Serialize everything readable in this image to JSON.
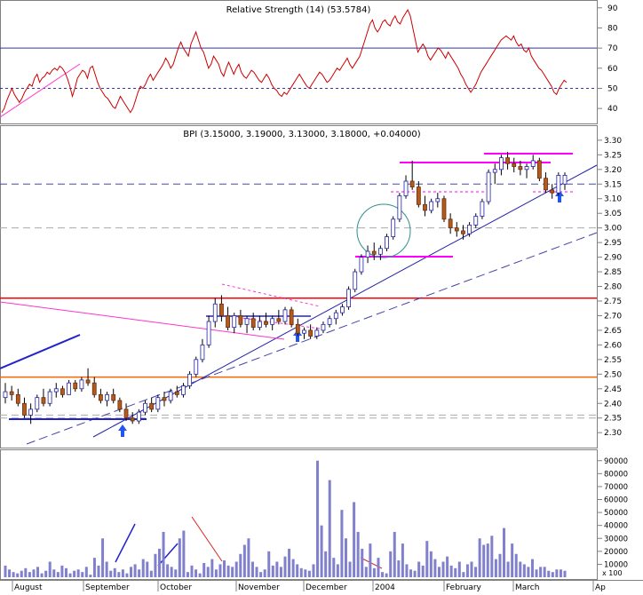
{
  "chart_data": {
    "type": "candlestick",
    "x_labels": [
      "August",
      "September",
      "October",
      "November",
      "December",
      "2004",
      "February",
      "March",
      "Ap"
    ],
    "rsi": {
      "title": "Relative Strength (14) (53.5784)",
      "y_ticks": [
        40,
        50,
        60,
        70,
        80,
        90
      ],
      "ylim": [
        33,
        93
      ],
      "reference_levels": [
        70,
        50
      ],
      "values": [
        38,
        40,
        44,
        47,
        50,
        47,
        45,
        43,
        45,
        48,
        50,
        52,
        51,
        55,
        57,
        53,
        55,
        56,
        58,
        57,
        59,
        60,
        59,
        61,
        60,
        58,
        55,
        51,
        46,
        50,
        55,
        57,
        59,
        58,
        55,
        60,
        61,
        57,
        53,
        50,
        48,
        46,
        45,
        43,
        41,
        40,
        43,
        46,
        44,
        42,
        40,
        38,
        40,
        44,
        48,
        51,
        50,
        52,
        55,
        57,
        54,
        56,
        58,
        60,
        62,
        65,
        63,
        60,
        62,
        66,
        70,
        73,
        70,
        68,
        66,
        72,
        75,
        78,
        74,
        70,
        68,
        64,
        60,
        62,
        66,
        64,
        62,
        58,
        56,
        60,
        63,
        60,
        57,
        60,
        62,
        58,
        56,
        55,
        57,
        59,
        58,
        56,
        54,
        53,
        55,
        57,
        55,
        52,
        50,
        49,
        47,
        46,
        48,
        47,
        49,
        51,
        53,
        55,
        57,
        55,
        53,
        51,
        50,
        52,
        54,
        56,
        58,
        57,
        55,
        53,
        54,
        56,
        58,
        60,
        59,
        61,
        63,
        65,
        62,
        60,
        62,
        64,
        66,
        70,
        74,
        78,
        82,
        84,
        80,
        78,
        80,
        83,
        84,
        82,
        81,
        84,
        86,
        83,
        82,
        85,
        87,
        89,
        86,
        80,
        74,
        68,
        70,
        72,
        70,
        66,
        64,
        66,
        68,
        70,
        69,
        67,
        65,
        68,
        66,
        64,
        62,
        60,
        57,
        55,
        52,
        50,
        48,
        50,
        52,
        55,
        58,
        60,
        62,
        64,
        66,
        68,
        70,
        72,
        74,
        75,
        76,
        75,
        74,
        76,
        73,
        71,
        72,
        69,
        68,
        70,
        66,
        64,
        62,
        60,
        59,
        57,
        55,
        53,
        51,
        48,
        47,
        50,
        52,
        54,
        53
      ]
    },
    "price": {
      "title": "BPI (3.15000, 3.19000, 3.13000, 3.18000, +0.04000)",
      "y_ticks": [
        2.3,
        2.35,
        2.4,
        2.45,
        2.5,
        2.55,
        2.6,
        2.65,
        2.7,
        2.75,
        2.8,
        2.85,
        2.9,
        2.95,
        3.0,
        3.05,
        3.1,
        3.15,
        3.2,
        3.25,
        3.3
      ],
      "y_tick_labels": [
        "2.30",
        "2.35",
        "2.40",
        "2.45",
        "2.50",
        "2.55",
        "2.60",
        "2.65",
        "2.70",
        "2.75",
        "2.80",
        "2.85",
        "2.90",
        "2.95",
        "3.00",
        "3.05",
        "3.10",
        "3.15",
        "3.20",
        "3.25",
        "3.30"
      ],
      "ylim": [
        2.255,
        3.33
      ],
      "horizontal_levels": [
        {
          "value": 2.76,
          "color": "#ff0000",
          "style": "solid"
        },
        {
          "value": 2.49,
          "color": "#ff6600",
          "style": "solid"
        },
        {
          "value": 3.15,
          "color": "#4a4a9a",
          "style": "dashed"
        },
        {
          "value": 3.0,
          "color": "#aaaaaa",
          "style": "dashed"
        },
        {
          "value": 2.36,
          "color": "#aaaaaa",
          "style": "dashed"
        },
        {
          "value": 2.35,
          "color": "#aaaaaa",
          "style": "dashed"
        }
      ],
      "candles": [
        [
          2.42,
          2.47,
          2.4,
          2.44
        ],
        [
          2.44,
          2.46,
          2.41,
          2.43
        ],
        [
          2.43,
          2.45,
          2.39,
          2.4
        ],
        [
          2.4,
          2.42,
          2.35,
          2.36
        ],
        [
          2.36,
          2.4,
          2.33,
          2.38
        ],
        [
          2.38,
          2.43,
          2.37,
          2.42
        ],
        [
          2.42,
          2.45,
          2.39,
          2.4
        ],
        [
          2.4,
          2.45,
          2.39,
          2.44
        ],
        [
          2.44,
          2.47,
          2.42,
          2.45
        ],
        [
          2.45,
          2.46,
          2.42,
          2.43
        ],
        [
          2.43,
          2.48,
          2.43,
          2.47
        ],
        [
          2.47,
          2.48,
          2.44,
          2.45
        ],
        [
          2.45,
          2.49,
          2.44,
          2.48
        ],
        [
          2.48,
          2.52,
          2.46,
          2.47
        ],
        [
          2.47,
          2.49,
          2.42,
          2.43
        ],
        [
          2.43,
          2.45,
          2.4,
          2.41
        ],
        [
          2.41,
          2.44,
          2.39,
          2.43
        ],
        [
          2.43,
          2.45,
          2.4,
          2.41
        ],
        [
          2.41,
          2.42,
          2.37,
          2.38
        ],
        [
          2.38,
          2.4,
          2.34,
          2.35
        ],
        [
          2.35,
          2.37,
          2.33,
          2.34
        ],
        [
          2.34,
          2.38,
          2.33,
          2.37
        ],
        [
          2.37,
          2.41,
          2.36,
          2.4
        ],
        [
          2.4,
          2.42,
          2.37,
          2.38
        ],
        [
          2.38,
          2.43,
          2.37,
          2.42
        ],
        [
          2.42,
          2.44,
          2.39,
          2.41
        ],
        [
          2.41,
          2.45,
          2.4,
          2.44
        ],
        [
          2.44,
          2.46,
          2.42,
          2.43
        ],
        [
          2.43,
          2.47,
          2.42,
          2.46
        ],
        [
          2.46,
          2.51,
          2.45,
          2.5
        ],
        [
          2.5,
          2.56,
          2.49,
          2.55
        ],
        [
          2.55,
          2.62,
          2.54,
          2.6
        ],
        [
          2.6,
          2.7,
          2.59,
          2.68
        ],
        [
          2.68,
          2.76,
          2.66,
          2.74
        ],
        [
          2.74,
          2.77,
          2.68,
          2.7
        ],
        [
          2.7,
          2.73,
          2.65,
          2.66
        ],
        [
          2.66,
          2.71,
          2.64,
          2.7
        ],
        [
          2.7,
          2.72,
          2.66,
          2.67
        ],
        [
          2.67,
          2.7,
          2.64,
          2.69
        ],
        [
          2.69,
          2.71,
          2.65,
          2.66
        ],
        [
          2.66,
          2.7,
          2.65,
          2.68
        ],
        [
          2.68,
          2.71,
          2.66,
          2.67
        ],
        [
          2.67,
          2.7,
          2.65,
          2.69
        ],
        [
          2.69,
          2.72,
          2.67,
          2.68
        ],
        [
          2.68,
          2.73,
          2.67,
          2.72
        ],
        [
          2.72,
          2.73,
          2.66,
          2.67
        ],
        [
          2.67,
          2.69,
          2.63,
          2.64
        ],
        [
          2.64,
          2.66,
          2.62,
          2.65
        ],
        [
          2.65,
          2.67,
          2.62,
          2.63
        ],
        [
          2.63,
          2.66,
          2.62,
          2.65
        ],
        [
          2.65,
          2.68,
          2.64,
          2.67
        ],
        [
          2.67,
          2.7,
          2.66,
          2.69
        ],
        [
          2.69,
          2.72,
          2.67,
          2.71
        ],
        [
          2.71,
          2.74,
          2.7,
          2.73
        ],
        [
          2.73,
          2.8,
          2.72,
          2.79
        ],
        [
          2.79,
          2.86,
          2.78,
          2.85
        ],
        [
          2.85,
          2.91,
          2.84,
          2.9
        ],
        [
          2.9,
          2.94,
          2.88,
          2.92
        ],
        [
          2.92,
          2.95,
          2.89,
          2.91
        ],
        [
          2.91,
          2.94,
          2.89,
          2.93
        ],
        [
          2.93,
          2.98,
          2.92,
          2.97
        ],
        [
          2.97,
          3.04,
          2.96,
          3.03
        ],
        [
          3.03,
          3.12,
          3.02,
          3.11
        ],
        [
          3.11,
          3.18,
          3.1,
          3.16
        ],
        [
          3.16,
          3.23,
          3.13,
          3.14
        ],
        [
          3.14,
          3.16,
          3.07,
          3.08
        ],
        [
          3.08,
          3.11,
          3.04,
          3.06
        ],
        [
          3.06,
          3.1,
          3.05,
          3.09
        ],
        [
          3.09,
          3.12,
          3.07,
          3.1
        ],
        [
          3.1,
          3.11,
          3.02,
          3.03
        ],
        [
          3.03,
          3.05,
          2.98,
          3.0
        ],
        [
          3.0,
          3.02,
          2.97,
          2.99
        ],
        [
          2.99,
          3.01,
          2.96,
          2.98
        ],
        [
          2.98,
          3.02,
          2.97,
          3.01
        ],
        [
          3.01,
          3.05,
          3.0,
          3.04
        ],
        [
          3.04,
          3.1,
          3.03,
          3.09
        ],
        [
          3.09,
          3.2,
          3.08,
          3.19
        ],
        [
          3.19,
          3.22,
          3.15,
          3.2
        ],
        [
          3.2,
          3.25,
          3.18,
          3.24
        ],
        [
          3.24,
          3.26,
          3.2,
          3.22
        ],
        [
          3.22,
          3.24,
          3.19,
          3.21
        ],
        [
          3.21,
          3.23,
          3.18,
          3.2
        ],
        [
          3.2,
          3.22,
          3.17,
          3.21
        ],
        [
          3.21,
          3.25,
          3.2,
          3.23
        ],
        [
          3.23,
          3.24,
          3.16,
          3.17
        ],
        [
          3.17,
          3.19,
          3.12,
          3.13
        ],
        [
          3.13,
          3.15,
          3.1,
          3.12
        ],
        [
          3.12,
          3.19,
          3.11,
          3.18
        ],
        [
          3.15,
          3.19,
          3.13,
          3.18
        ]
      ]
    },
    "volume": {
      "y_ticks": [
        10000,
        20000,
        30000,
        40000,
        50000,
        60000,
        70000,
        80000,
        90000
      ],
      "y_tick_labels": [
        "10000",
        "20000",
        "30000",
        "40000",
        "50000",
        "60000",
        "70000",
        "80000",
        "90000"
      ],
      "ylim": [
        0,
        96000
      ],
      "scale_note": "x 100",
      "values": [
        9000,
        6000,
        4000,
        3000,
        5000,
        7000,
        4000,
        6000,
        8000,
        3000,
        5000,
        12000,
        6000,
        4000,
        9000,
        7000,
        3000,
        5000,
        6000,
        4000,
        8000,
        2000,
        15000,
        9000,
        30000,
        12000,
        5000,
        7000,
        4000,
        6000,
        3000,
        8000,
        10000,
        6000,
        14000,
        12000,
        5000,
        18000,
        22000,
        35000,
        10000,
        8000,
        6000,
        30000,
        36000,
        4000,
        9000,
        6000,
        3000,
        11000,
        8000,
        14000,
        6000,
        10000,
        13000,
        9000,
        8000,
        12000,
        18000,
        25000,
        30000,
        12000,
        8000,
        4000,
        6000,
        20000,
        9000,
        12000,
        8000,
        16000,
        22000,
        14000,
        10000,
        7000,
        6000,
        5000,
        10000,
        90000,
        40000,
        20000,
        75000,
        15000,
        10000,
        52000,
        30000,
        12000,
        58000,
        35000,
        22000,
        8000,
        26000,
        7000,
        15000,
        4000,
        3000,
        20000,
        35000,
        13000,
        26000,
        10000,
        6000,
        5000,
        12000,
        9000,
        28000,
        20000,
        14000,
        8000,
        12000,
        16000,
        9000,
        7000,
        12000,
        4000,
        10000,
        12000,
        8000,
        30000,
        25000,
        26000,
        32000,
        14000,
        18000,
        38000,
        12000,
        26000,
        18000,
        12000,
        10000,
        8000,
        14000,
        6000,
        8000,
        8000,
        5000,
        4000,
        6000,
        6000,
        5000
      ]
    }
  }
}
